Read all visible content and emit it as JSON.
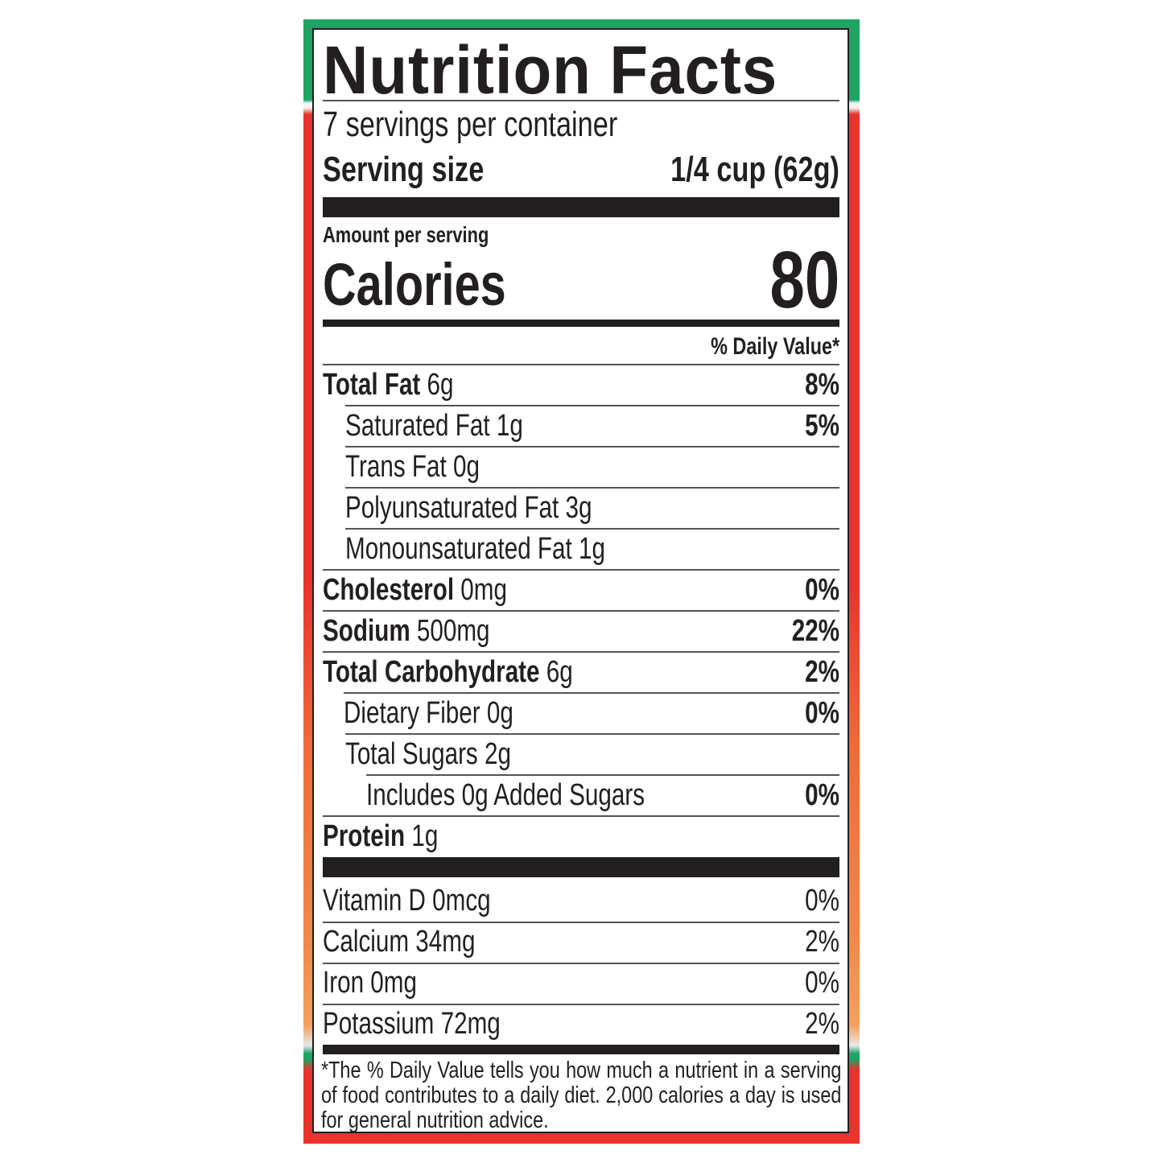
{
  "title": "Nutrition Facts",
  "servings_per_container": "7 servings per container",
  "serving_size_label": "Serving size",
  "serving_size_value": "1/4 cup (62g)",
  "amount_per_serving": "Amount per serving",
  "calories_label": "Calories",
  "calories_value": "80",
  "daily_value_header": "% Daily Value*",
  "nutrients": [
    {
      "name": "Total Fat",
      "amount": "6g",
      "dv": "8%"
    },
    {
      "name": "Saturated Fat",
      "amount": "1g",
      "dv": "5%"
    },
    {
      "name": "Trans Fat",
      "amount": "0g",
      "dv": ""
    },
    {
      "name": "Polyunsaturated Fat",
      "amount": "3g",
      "dv": ""
    },
    {
      "name": "Monounsaturated Fat",
      "amount": "1g",
      "dv": ""
    },
    {
      "name": "Cholesterol",
      "amount": "0mg",
      "dv": "0%"
    },
    {
      "name": "Sodium",
      "amount": "500mg",
      "dv": "22%"
    },
    {
      "name": "Total Carbohydrate",
      "amount": "6g",
      "dv": "2%"
    },
    {
      "name": "Dietary Fiber",
      "amount": "0g",
      "dv": "0%"
    },
    {
      "name": "Total Sugars",
      "amount": "2g",
      "dv": ""
    },
    {
      "name": "Includes 0g Added Sugars",
      "amount": "",
      "dv": "0%"
    },
    {
      "name": "Protein",
      "amount": "1g",
      "dv": ""
    }
  ],
  "vitamins": [
    {
      "label": "Vitamin D 0mcg",
      "dv": "0%"
    },
    {
      "label": "Calcium 34mg",
      "dv": "2%"
    },
    {
      "label": "Iron 0mg",
      "dv": "0%"
    },
    {
      "label": "Potassium 72mg",
      "dv": "2%"
    }
  ],
  "footnote": "*The % Daily Value tells you how much a nutrient in a serving of food contributes to a daily diet. 2,000 calories a day is used for general nutrition advice.",
  "colors": {
    "green": "#1fa463",
    "red": "#e8332e",
    "orange": "#f08a4a",
    "ink": "#231f20"
  }
}
